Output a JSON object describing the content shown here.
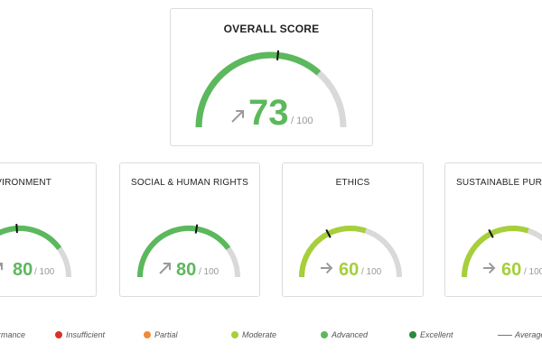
{
  "overall": {
    "title": "OVERALL SCORE",
    "score": "73",
    "out_of": "/ 100",
    "trend": "up",
    "value": 73,
    "average": 53,
    "color": "#5cb85c"
  },
  "categories": [
    {
      "title": "ENVIRONMENT",
      "score": "80",
      "out_of": "/ 100",
      "trend": "up",
      "value": 80,
      "average": 48,
      "color": "#5cb85c"
    },
    {
      "title": "SOCIAL & HUMAN RIGHTS",
      "score": "80",
      "out_of": "/ 100",
      "trend": "up",
      "value": 80,
      "average": 55,
      "color": "#5cb85c"
    },
    {
      "title": "ETHICS",
      "score": "60",
      "out_of": "/ 100",
      "trend": "right",
      "value": 60,
      "average": 35,
      "color": "#a6cf3a"
    },
    {
      "title": "SUSTAINABLE PURC",
      "score": "60",
      "out_of": "/ 100",
      "trend": "right",
      "value": 60,
      "average": 35,
      "color": "#a6cf3a"
    }
  ],
  "legend": {
    "items": [
      {
        "label": "rmance",
        "type": "text"
      },
      {
        "label": "Insufficient",
        "type": "dot",
        "color": "#d9302a"
      },
      {
        "label": "Partial",
        "type": "dot",
        "color": "#f08a3a"
      },
      {
        "label": "Moderate",
        "type": "dot",
        "color": "#a6cf3a"
      },
      {
        "label": "Advanced",
        "type": "dot",
        "color": "#5cb85c"
      },
      {
        "label": "Excellent",
        "type": "dot",
        "color": "#2a8a3e"
      },
      {
        "label": "Average",
        "type": "line",
        "color": "#777777"
      }
    ]
  },
  "track_color": "#d9d9d9",
  "arrow_color": "#9a9a9a",
  "muted_text_color": "#999999"
}
